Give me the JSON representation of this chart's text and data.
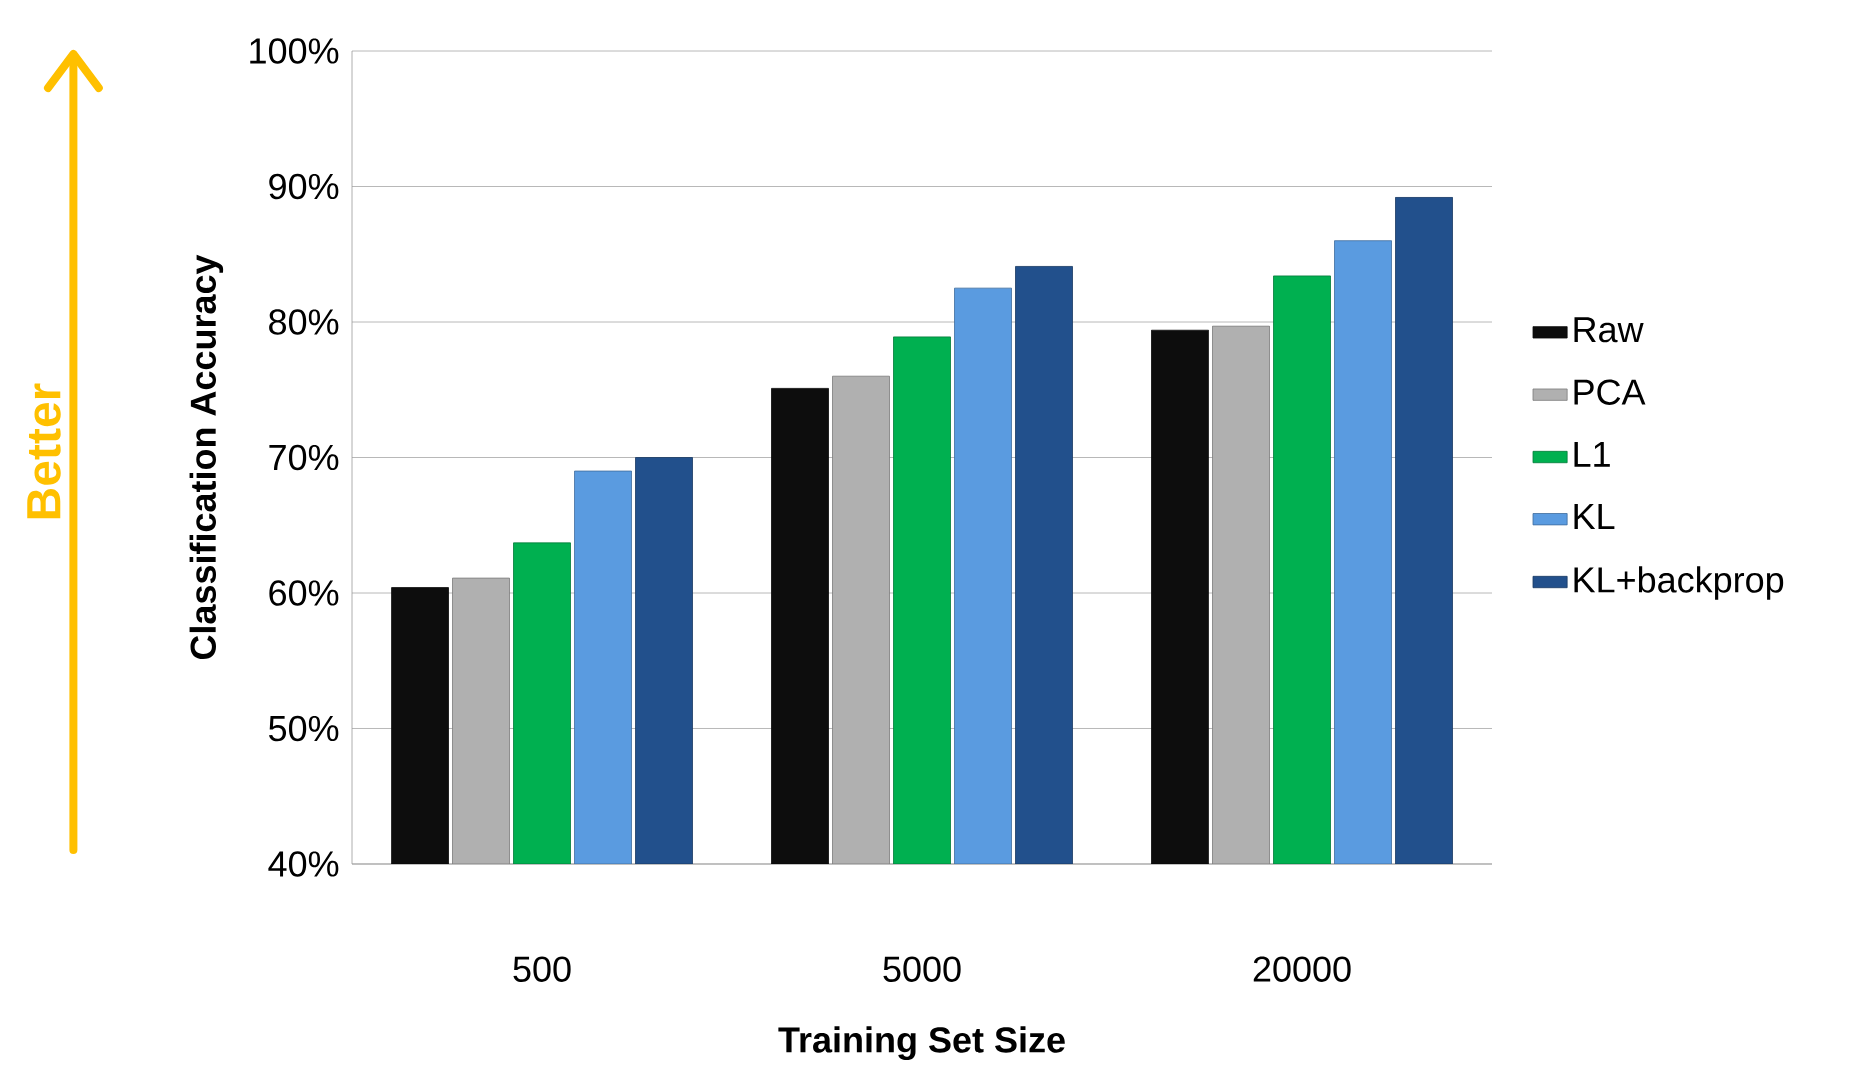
{
  "chart_data": {
    "type": "bar",
    "xlabel": "Training Set Size",
    "ylabel": "Classification Accuracy",
    "categories": [
      "500",
      "5000",
      "20000"
    ],
    "series": [
      {
        "name": "Raw",
        "color": "#0d0d0d",
        "values": [
          60.4,
          75.1,
          79.4
        ]
      },
      {
        "name": "PCA",
        "color": "#b0b0b0",
        "values": [
          61.1,
          76.0,
          79.7
        ]
      },
      {
        "name": "L1",
        "color": "#00b050",
        "values": [
          63.7,
          78.9,
          83.4
        ]
      },
      {
        "name": "KL",
        "color": "#5a9be0",
        "values": [
          69.0,
          82.5,
          86.0
        ]
      },
      {
        "name": "KL+backprop",
        "color": "#22508c",
        "values": [
          70.0,
          84.1,
          89.2
        ]
      }
    ],
    "ylim": [
      40,
      100
    ],
    "yticks": [
      {
        "value": 40,
        "label": "40%"
      },
      {
        "value": 50,
        "label": "50%"
      },
      {
        "value": 60,
        "label": "60%"
      },
      {
        "value": 70,
        "label": "70%"
      },
      {
        "value": 80,
        "label": "80%"
      },
      {
        "value": 90,
        "label": "90%"
      },
      {
        "value": 100,
        "label": "100%"
      }
    ],
    "grid": "y",
    "legend": "right",
    "annotations": [
      "Better"
    ]
  }
}
